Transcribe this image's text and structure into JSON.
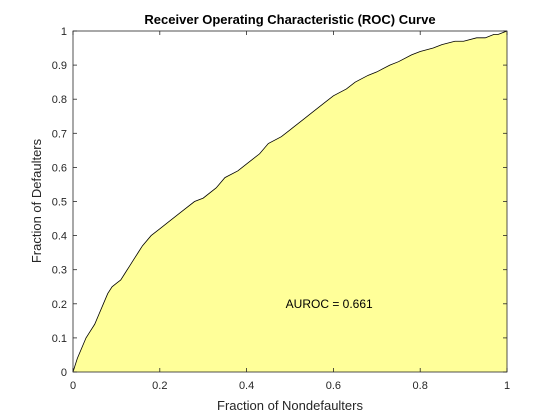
{
  "chart_data": {
    "type": "area",
    "title": "Receiver Operating Characteristic (ROC) Curve",
    "xlabel": "Fraction of Nondefaulters",
    "ylabel": "Fraction of Defaulters",
    "xlim": [
      0,
      1
    ],
    "ylim": [
      0,
      1
    ],
    "xticks": [
      0,
      0.2,
      0.4,
      0.6,
      0.8,
      1
    ],
    "xtick_labels": [
      "0",
      "0.2",
      "0.4",
      "0.6",
      "0.8",
      "1"
    ],
    "yticks": [
      0,
      0.1,
      0.2,
      0.3,
      0.4,
      0.5,
      0.6,
      0.7,
      0.8,
      0.9,
      1
    ],
    "ytick_labels": [
      "0",
      "0.1",
      "0.2",
      "0.3",
      "0.4",
      "0.5",
      "0.6",
      "0.7",
      "0.8",
      "0.9",
      "1"
    ],
    "grid": false,
    "legend": "none",
    "annotation": {
      "text": "AUROC = 0.661",
      "x": 0.49,
      "y": 0.2
    },
    "series": [
      {
        "x": [
          0,
          0.005,
          0.01,
          0.02,
          0.03,
          0.04,
          0.05,
          0.06,
          0.07,
          0.08,
          0.09,
          0.1,
          0.11,
          0.12,
          0.13,
          0.14,
          0.15,
          0.16,
          0.18,
          0.2,
          0.22,
          0.25,
          0.28,
          0.3,
          0.33,
          0.35,
          0.38,
          0.4,
          0.43,
          0.45,
          0.48,
          0.5,
          0.53,
          0.55,
          0.58,
          0.6,
          0.63,
          0.65,
          0.68,
          0.7,
          0.73,
          0.75,
          0.78,
          0.8,
          0.83,
          0.85,
          0.88,
          0.9,
          0.93,
          0.95,
          0.97,
          0.98,
          1.0
        ],
        "y": [
          0,
          0.02,
          0.04,
          0.07,
          0.1,
          0.12,
          0.14,
          0.17,
          0.2,
          0.23,
          0.25,
          0.26,
          0.27,
          0.29,
          0.31,
          0.33,
          0.35,
          0.37,
          0.4,
          0.42,
          0.44,
          0.47,
          0.5,
          0.51,
          0.54,
          0.57,
          0.59,
          0.61,
          0.64,
          0.67,
          0.69,
          0.71,
          0.74,
          0.76,
          0.79,
          0.81,
          0.83,
          0.85,
          0.87,
          0.88,
          0.9,
          0.91,
          0.93,
          0.94,
          0.95,
          0.96,
          0.97,
          0.97,
          0.98,
          0.98,
          0.99,
          0.99,
          1.0
        ],
        "fill_color": "#ffff99",
        "line_color": "#000000"
      }
    ]
  }
}
